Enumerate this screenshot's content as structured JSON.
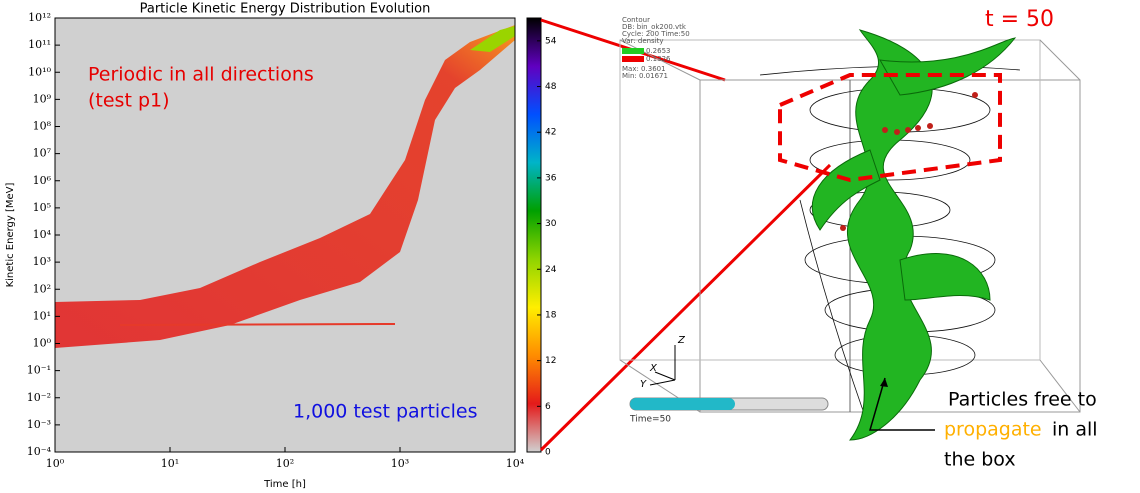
{
  "chart_data": {
    "type": "heatmap",
    "title": "Particle Kinetic Energy Distribution Evolution",
    "xlabel": "Time [h]",
    "ylabel": "Kinetic Energy [MeV]",
    "xscale": "log",
    "yscale": "log",
    "xlim": [
      1,
      10000
    ],
    "xticks": [
      {
        "value": 1,
        "label": "10⁰"
      },
      {
        "value": 10,
        "label": "10¹"
      },
      {
        "value": 100,
        "label": "10²"
      },
      {
        "value": 1000,
        "label": "10³"
      },
      {
        "value": 10000,
        "label": "10⁴"
      }
    ],
    "ylim": [
      0.0001,
      1000000000000
    ],
    "yticks": [
      {
        "value": 0.0001,
        "label": "10⁻⁴"
      },
      {
        "value": 0.001,
        "label": "10⁻³"
      },
      {
        "value": 0.01,
        "label": "10⁻²"
      },
      {
        "value": 0.1,
        "label": "10⁻¹"
      },
      {
        "value": 1,
        "label": "10⁰"
      },
      {
        "value": 10,
        "label": "10¹"
      },
      {
        "value": 100,
        "label": "10²"
      },
      {
        "value": 1000,
        "label": "10³"
      },
      {
        "value": 10000,
        "label": "10⁴"
      },
      {
        "value": 100000,
        "label": "10⁵"
      },
      {
        "value": 1000000,
        "label": "10⁶"
      },
      {
        "value": 10000000,
        "label": "10⁷"
      },
      {
        "value": 100000000,
        "label": "10⁸"
      },
      {
        "value": 1000000000,
        "label": "10⁹"
      },
      {
        "value": 10000000000,
        "label": "10¹⁰"
      },
      {
        "value": 100000000000,
        "label": "10¹¹"
      },
      {
        "value": 1000000000000,
        "label": "10¹²"
      }
    ],
    "clim": [
      0,
      57
    ],
    "cticks": [
      0,
      6,
      12,
      18,
      24,
      30,
      36,
      42,
      48,
      54
    ],
    "colormap": [
      "#d0d0d0",
      "#e41a1a",
      "#ff8c00",
      "#ffee00",
      "#8fd400",
      "#00a000",
      "#00b4c8",
      "#0050ff",
      "#6000c0",
      "#000000"
    ],
    "annotations": [
      {
        "text": "Periodic in all directions",
        "color": "#e60000"
      },
      {
        "text": "(test p1)",
        "color": "#e60000"
      },
      {
        "text": "1,000 test particles",
        "color": "#1010e0"
      }
    ]
  },
  "visualization": {
    "time_label": "t = 50",
    "legend": [
      "Contour",
      "DB: bin_ok200.vtk",
      "Cycle: 200    Time:50",
      "Var: density"
    ],
    "levels": [
      "0.2653",
      "0.1326"
    ],
    "range": [
      "Max: 0.3601",
      "Min: 0.01671"
    ],
    "axes": [
      "Z",
      "X",
      "Y"
    ],
    "timer": "Time=50",
    "note": [
      "Particles free to",
      "propagate",
      "in all",
      "the box"
    ]
  }
}
